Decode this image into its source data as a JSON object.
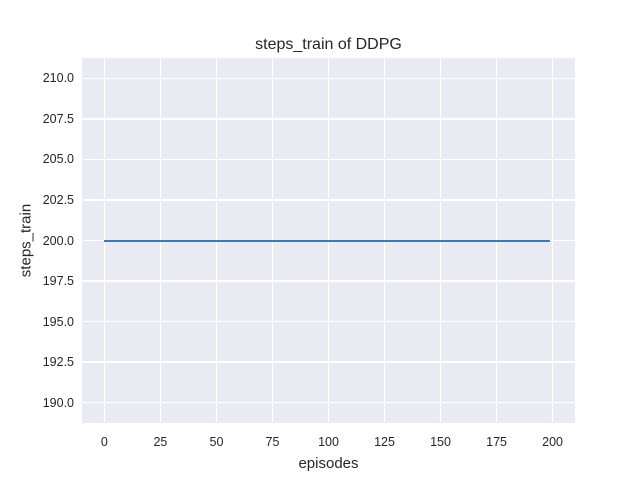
{
  "chart_data": {
    "type": "line",
    "title": "steps_train of DDPG",
    "xlabel": "episodes",
    "ylabel": "steps_train",
    "x_ticks": [
      0,
      25,
      50,
      75,
      100,
      125,
      150,
      175,
      200
    ],
    "x_tick_labels": [
      "0",
      "25",
      "50",
      "75",
      "100",
      "125",
      "150",
      "175",
      "200"
    ],
    "y_ticks": [
      190.0,
      192.5,
      195.0,
      197.5,
      200.0,
      202.5,
      205.0,
      207.5,
      210.0
    ],
    "y_tick_labels": [
      "190.0",
      "192.5",
      "195.0",
      "197.5",
      "200.0",
      "202.5",
      "205.0",
      "207.5",
      "210.0"
    ],
    "xlim": [
      -10,
      210
    ],
    "ylim": [
      188.75,
      211.25
    ],
    "grid": true,
    "legend_position": "none",
    "style": "seaborn-darkgrid",
    "series": [
      {
        "name": "DDPG",
        "color": "#4c72b0",
        "x": [
          0,
          199
        ],
        "y": [
          200,
          200
        ],
        "constant_value": 200
      }
    ],
    "colors": {
      "figure_background": "#ffffff",
      "plot_background": "#eaeaf2",
      "gridline": "#ffffff",
      "line": "#4c72b0",
      "text": "#262626"
    }
  }
}
